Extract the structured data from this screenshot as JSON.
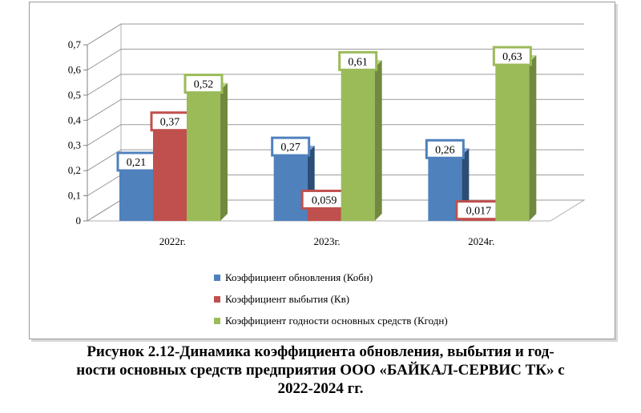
{
  "chart_data": {
    "type": "bar",
    "categories": [
      "2022г.",
      "2023г.",
      "2024г."
    ],
    "series": [
      {
        "name": "Коэффициент обновления (Кобн)",
        "values": [
          0.21,
          0.27,
          0.26
        ],
        "labels": [
          "0,21",
          "0,27",
          "0,26"
        ]
      },
      {
        "name": "Коэффициент выбытия (Кв)",
        "values": [
          0.37,
          0.059,
          0.017
        ],
        "labels": [
          "0,37",
          "0,059",
          "0,017"
        ]
      },
      {
        "name": "Коэффициент годности основных средств (Кгодн)",
        "values": [
          0.52,
          0.61,
          0.63
        ],
        "labels": [
          "0,52",
          "0,61",
          "0,63"
        ]
      }
    ],
    "yticks": [
      "0",
      "0,1",
      "0,2",
      "0,3",
      "0,4",
      "0,5",
      "0,6",
      "0,7"
    ],
    "ylim": [
      0,
      0.7
    ],
    "grid": true,
    "legend_position": "bottom",
    "colors": {
      "front": [
        "#4f81bd",
        "#c0504d",
        "#9bbb59"
      ],
      "side": [
        "#2c4d75",
        "#8b3230",
        "#71893f"
      ],
      "top": [
        "#7ea2d0",
        "#d47f7d",
        "#bad48a"
      ]
    },
    "bar_style": "3d"
  },
  "caption": {
    "line1": "Рисунок  2.12-Динамика коэффициента обновления, выбытия и год-",
    "line2": "ности основных средств предприятия ООО «БАЙКАЛ-СЕРВИС ТК» с",
    "line3": "2022-2024 гг."
  }
}
